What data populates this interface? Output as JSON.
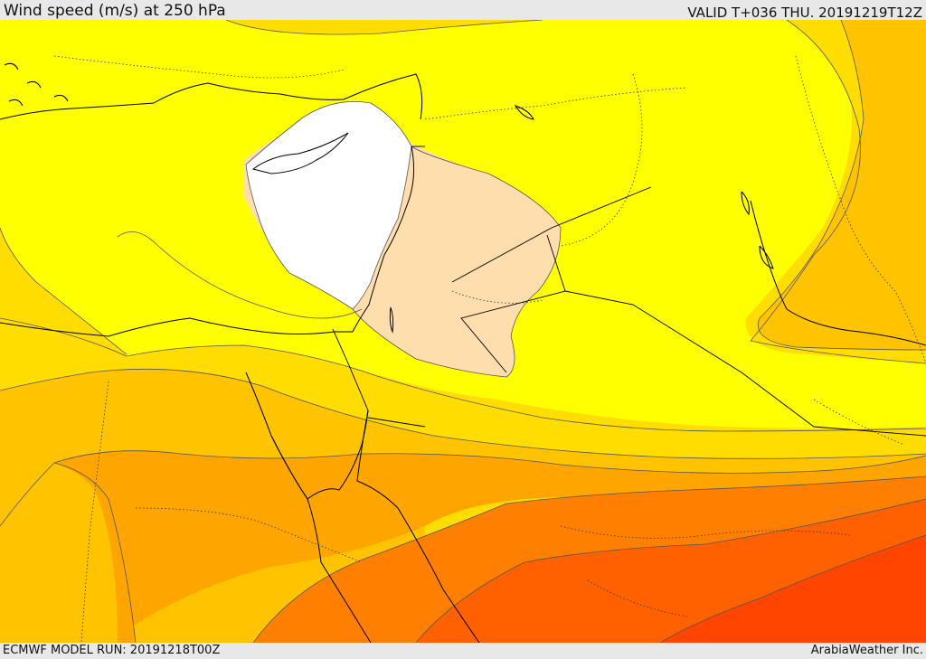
{
  "header": {
    "title": "Wind speed (m/s) at 250 hPa",
    "valid": "VALID T+036 THU. 20191219T12Z"
  },
  "footer": {
    "model_run": "ECMWF MODEL RUN: 20191218T00Z",
    "provider": "ArabiaWeather Inc."
  },
  "map": {
    "field": "wind-speed-250hPa",
    "fill_colors": {
      "lt_lowest": "#ffffff",
      "band_1": "#ffdead",
      "band_2": "#ffff00",
      "band_3": "#ffdd00",
      "band_4": "#ffc300",
      "band_5": "#ffa500",
      "band_6": "#ff8000",
      "band_7": "#ff6000",
      "band_8": "#ff4500"
    },
    "contour_color": "#555555",
    "coastline_color": "#000000",
    "border_style": "dotted"
  }
}
